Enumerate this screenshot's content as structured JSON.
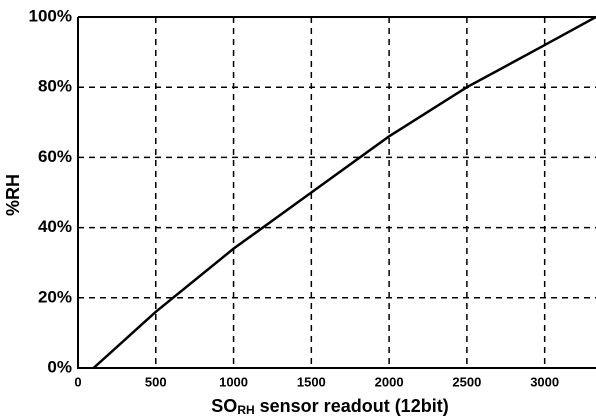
{
  "chart_data": {
    "type": "line",
    "ylabel": "%RH",
    "xlabel_parts": [
      "SO",
      "RH",
      " sensor readout (12bit)"
    ],
    "x": [
      100,
      500,
      1000,
      1500,
      2000,
      2500,
      3000,
      3330
    ],
    "series": [
      {
        "color": "#000000",
        "values": [
          0,
          16,
          34,
          50,
          66,
          80,
          92,
          100
        ]
      }
    ],
    "xlim": [
      0,
      3330
    ],
    "xticks": [
      0,
      500,
      1000,
      1500,
      2000,
      2500,
      3000
    ],
    "ylim": [
      0,
      100
    ],
    "yticks": [
      {
        "value": 0,
        "label": "0%"
      },
      {
        "value": 20,
        "label": "20%"
      },
      {
        "value": 40,
        "label": "40%"
      },
      {
        "value": 60,
        "label": "60%"
      },
      {
        "value": 80,
        "label": "80%"
      },
      {
        "value": 100,
        "label": "100%"
      }
    ],
    "grid": true
  }
}
